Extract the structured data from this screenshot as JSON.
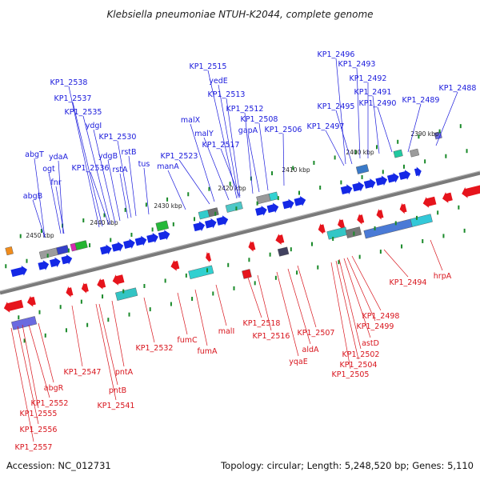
{
  "title": "Klebsiella pneumoniae NTUH-K2044, complete genome",
  "footer": {
    "accession": "Accession: NC_012731",
    "topology": "Topology: circular; Length: 5,248,520 bp; Genes: 5,110"
  },
  "colors": {
    "axis": "#7a7a7a",
    "forward_label": "#1a1adc",
    "reverse_label": "#d8141c",
    "forward_arrow": "#1428e6",
    "reverse_arrow": "#e6141c",
    "tick_dots": "#1a8a2a"
  },
  "ticks": [
    "2390 kbp",
    "2400 kbp",
    "2410 kbp",
    "2420 kbp",
    "2430 kbp",
    "2440 kbp",
    "2450 kbp"
  ],
  "forward_labels": [
    "KP1_2488",
    "KP1_2489",
    "KP1_2490",
    "KP1_2491",
    "KP1_2492",
    "KP1_2493",
    "KP1_2495",
    "KP1_2496",
    "KP1_2497",
    "KP1_2506",
    "KP1_2508",
    "gapA",
    "KP1_2512",
    "KP1_2513",
    "yedE",
    "KP1_2515",
    "malX",
    "malY",
    "KP1_2517",
    "KP1_2523",
    "manA",
    "tus",
    "rstB",
    "KP1_2530",
    "rstA",
    "ydgB",
    "ydgI",
    "KP1_2535",
    "KP1_2536",
    "KP1_2537",
    "KP1_2538",
    "abgT",
    "ydaA",
    "ogt",
    "fnr",
    "abgB"
  ],
  "reverse_labels": [
    "hrpA",
    "KP1_2494",
    "KP1_2498",
    "KP1_2499",
    "astD",
    "KP1_2502",
    "KP1_2504",
    "KP1_2505",
    "KP1_2507",
    "aldA",
    "yqaE",
    "KP1_2516",
    "KP1_2518",
    "malI",
    "fumA",
    "fumC",
    "KP1_2532",
    "pntA",
    "pntB",
    "KP1_2541",
    "KP1_2547",
    "abgR",
    "KP1_2552",
    "KP1_2555",
    "KP1_2556",
    "KP1_2557"
  ]
}
